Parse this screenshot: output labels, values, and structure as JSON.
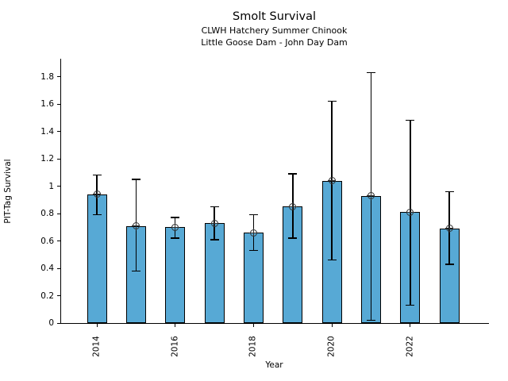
{
  "header": {
    "title": "Smolt Survival",
    "subtitle1": "CLWH Hatchery Summer Chinook",
    "subtitle2": "Little Goose Dam - John Day Dam"
  },
  "chart_data": {
    "type": "bar",
    "title": "Smolt Survival",
    "subtitles": [
      "CLWH Hatchery Summer Chinook",
      "Little Goose Dam - John Day Dam"
    ],
    "xlabel": "Year",
    "ylabel": "PIT-Tag Survival",
    "categories": [
      2014,
      2015,
      2016,
      2017,
      2018,
      2019,
      2020,
      2021,
      2022,
      2023
    ],
    "values": [
      0.94,
      0.71,
      0.7,
      0.73,
      0.66,
      0.85,
      1.04,
      0.93,
      0.81,
      0.69
    ],
    "error_low": [
      0.79,
      0.38,
      0.62,
      0.61,
      0.53,
      0.62,
      0.46,
      0.02,
      0.13,
      0.43
    ],
    "error_high": [
      1.08,
      1.05,
      0.77,
      0.85,
      0.79,
      1.09,
      1.62,
      1.83,
      1.48,
      0.96
    ],
    "ylim": [
      0,
      1.93
    ],
    "yticks": [
      0,
      0.2,
      0.4,
      0.6,
      0.8,
      1.0,
      1.2,
      1.4,
      1.6,
      1.8
    ],
    "ytick_labels": [
      "0",
      "0.2",
      "0.4",
      "0.6",
      "0.8",
      "1",
      "1.2",
      "1.4",
      "1.6",
      "1.8"
    ],
    "xticks": [
      2014,
      2016,
      2018,
      2020,
      2022
    ],
    "grid": false,
    "legend": "none",
    "bar_color": "#57a9d5",
    "bar_edge_color": "#000000",
    "error_color": "#000000",
    "marker": "circle-cross",
    "marker_color": "#2f2f2f"
  }
}
